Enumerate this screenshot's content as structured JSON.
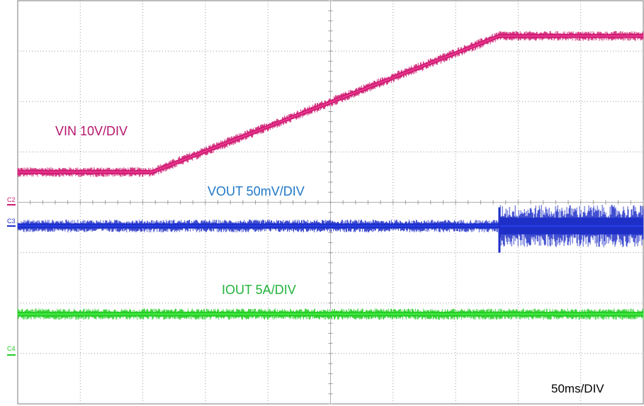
{
  "chart_data": {
    "type": "line",
    "grid": true,
    "timebase": "50ms/DIV",
    "x_unit": "div",
    "xlim": [
      0,
      10
    ],
    "ylim": [
      0,
      8
    ],
    "series": [
      {
        "name": "VIN 10V/DIV",
        "channel": "C1",
        "color": "#cc1a70",
        "x": [
          0,
          2.15,
          7.7,
          10
        ],
        "y": [
          4.6,
          4.6,
          7.3,
          7.3
        ],
        "noise": 0.07
      },
      {
        "name": "VOUT 50mV/DIV",
        "channel": "C3",
        "color": "#1f2fc8",
        "x": [
          0,
          7.7,
          7.7,
          10
        ],
        "y": [
          3.53,
          3.53,
          3.53,
          3.53
        ],
        "noise": 0.09,
        "noise_after_x7_7": 0.3
      },
      {
        "name": "IOUT 5A/DIV",
        "channel": "C4",
        "color": "#22cc22",
        "x": [
          0,
          10
        ],
        "y": [
          1.78,
          1.78
        ],
        "noise": 0.08
      }
    ],
    "labels": {
      "vin": "VIN 10V/DIV",
      "vout": "VOUT 50mV/DIV",
      "iout": "IOUT 5A/DIV",
      "timebase": "50ms/DIV"
    },
    "channel_markers": {
      "c2": "C2",
      "c3": "C3",
      "c4": "C4"
    }
  }
}
